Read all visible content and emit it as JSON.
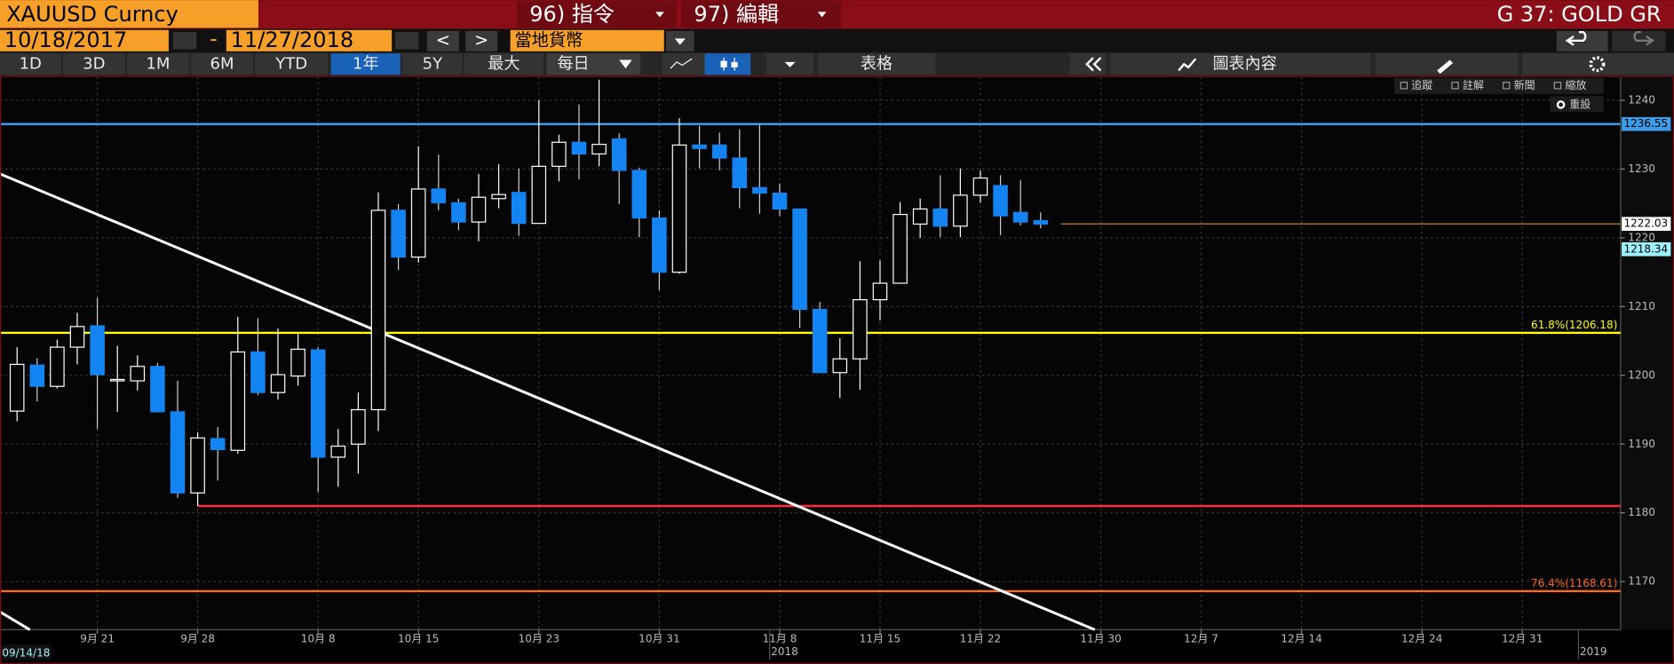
{
  "header": {
    "security": "XAUUSD Curncy",
    "menu": [
      "96) 指令",
      "97) 編輯"
    ],
    "page_title": "G 37: GOLD GR"
  },
  "toolbar": {
    "start_date": "10/18/2017",
    "date_separator": "-",
    "end_date": "11/27/2018",
    "nav": [
      "<",
      ">"
    ],
    "currency": "當地貨幣"
  },
  "tabs": {
    "periods": [
      "1D",
      "3D",
      "1M",
      "6M",
      "YTD",
      "1年",
      "5Y",
      "最大"
    ],
    "selected_period": 5,
    "frequency": "每日",
    "table": "表格",
    "chart_content": "圖表內容"
  },
  "chart_tools": {
    "items": [
      "追蹤",
      "註解",
      "新聞",
      "縮放"
    ],
    "reset": "重設"
  },
  "date_stamp": "09/14/18",
  "chart_data": {
    "type": "candlestick",
    "open": [
      1194.8,
      1201.5,
      1198.4,
      1204.1,
      1207.2,
      1199.2,
      1199.2,
      1201.3,
      1194.7,
      1182.9,
      1190.8,
      1189.1,
      1203.4,
      1197.5,
      1199.9,
      1203.7,
      1188.1,
      1190.0,
      1195.0,
      1224.0,
      1217.2,
      1227.1,
      1225.1,
      1222.3,
      1225.7,
      1226.6,
      1222.1,
      1230.4,
      1233.9,
      1232.2,
      1234.4,
      1229.8,
      1222.9,
      1215.0,
      1233.5,
      1233.5,
      1231.6,
      1227.3,
      1226.5,
      1224.2,
      1209.6,
      1200.4,
      1202.4,
      1211.0,
      1213.4,
      1222.0,
      1224.2,
      1221.7,
      1226.2,
      1227.6,
      1223.7,
      1222.5
    ],
    "high": [
      1204.1,
      1202.5,
      1205.2,
      1209.1,
      1211.3,
      1204.3,
      1202.9,
      1201.8,
      1199.2,
      1191.7,
      1192.5,
      1208.5,
      1208.3,
      1206.8,
      1206.0,
      1204.1,
      1192.2,
      1197.5,
      1226.6,
      1224.9,
      1233.3,
      1232.1,
      1225.7,
      1229.3,
      1230.7,
      1230.1,
      1240.0,
      1235.0,
      1239.4,
      1243.0,
      1235.2,
      1230.2,
      1224.0,
      1237.4,
      1236.3,
      1235.3,
      1235.8,
      1236.4,
      1227.9,
      1224.2,
      1210.7,
      1205.4,
      1216.6,
      1216.7,
      1225.2,
      1225.7,
      1229.1,
      1230.1,
      1229.8,
      1229.1,
      1228.4,
      1223.7
    ],
    "low": [
      1193.3,
      1196.2,
      1198.1,
      1201.6,
      1192.2,
      1194.7,
      1197.8,
      1194.6,
      1182.2,
      1181.0,
      1184.7,
      1188.6,
      1197.1,
      1196.5,
      1198.5,
      1183.0,
      1183.8,
      1185.7,
      1191.9,
      1215.3,
      1216.4,
      1224.0,
      1221.1,
      1219.5,
      1224.3,
      1220.3,
      1222.1,
      1228.2,
      1228.5,
      1230.4,
      1224.9,
      1220.1,
      1212.4,
      1214.8,
      1230.1,
      1229.8,
      1224.3,
      1223.5,
      1223.2,
      1206.9,
      1200.4,
      1196.7,
      1197.9,
      1208.0,
      1213.4,
      1220.0,
      1220.1,
      1220.1,
      1225.1,
      1220.4,
      1221.8,
      1221.4
    ],
    "close": [
      1201.6,
      1198.4,
      1204.1,
      1207.1,
      1200.1,
      1199.4,
      1201.3,
      1194.7,
      1182.9,
      1190.9,
      1189.2,
      1203.4,
      1197.5,
      1200.1,
      1203.8,
      1188.1,
      1189.7,
      1195.0,
      1224.0,
      1217.2,
      1227.1,
      1225.1,
      1222.3,
      1225.9,
      1226.3,
      1222.1,
      1230.4,
      1233.9,
      1232.2,
      1233.6,
      1229.8,
      1222.9,
      1215.0,
      1233.5,
      1233.0,
      1231.6,
      1227.3,
      1226.5,
      1224.2,
      1209.6,
      1200.4,
      1202.4,
      1211.0,
      1213.4,
      1223.4,
      1224.2,
      1221.7,
      1226.2,
      1228.7,
      1223.2,
      1222.3,
      1222.0
    ],
    "up_color": "#ffffff",
    "down_color": "#1484f2",
    "xlim": [
      -0.85,
      79.9
    ],
    "xticks": [
      {
        "value": 4,
        "label": "9月 21"
      },
      {
        "value": 9,
        "label": "9月 28"
      },
      {
        "value": 15,
        "label": "10月 8"
      },
      {
        "value": 20,
        "label": "10月 15"
      },
      {
        "value": 26,
        "label": "10月 23"
      },
      {
        "value": 32,
        "label": "10月 31"
      },
      {
        "value": 38,
        "label": "11月 8"
      },
      {
        "value": 43,
        "label": "11月 15"
      },
      {
        "value": 48,
        "label": "11月 22"
      },
      {
        "value": 54,
        "label": "11月 30"
      },
      {
        "value": 59,
        "label": "12月 7"
      },
      {
        "value": 64,
        "label": "12月 14"
      },
      {
        "value": 70,
        "label": "12月 24"
      },
      {
        "value": 75,
        "label": "12月 31"
      }
    ],
    "year_labels": [
      {
        "value": 37.5,
        "label": "2018"
      },
      {
        "value": 77.8,
        "label": "2019"
      }
    ],
    "ylim": [
      1163,
      1243.4
    ],
    "yticks": [
      1170,
      1180,
      1190,
      1200,
      1210,
      1220,
      1230,
      1240
    ],
    "grid": true,
    "levels": [
      {
        "value": 1236.55,
        "color": "#3d9be9"
      },
      {
        "value": 1206.18,
        "color": "#ffff00",
        "label": "61.8%(1206.18)"
      },
      {
        "value": 1181.0,
        "color": "#ff2d3c",
        "start": 9
      },
      {
        "value": 1168.61,
        "color": "#ff6a1a",
        "label": "76.4%(1168.61)"
      }
    ],
    "last_price": {
      "value": 1222.03,
      "color": "#e08a1c",
      "start": 52
    },
    "bid_price": {
      "value": 1218.34,
      "color": "#9ff3ff"
    },
    "trendlines": [
      {
        "color": "#ffffff",
        "points": [
          [
            -0.85,
            1229.3
          ],
          [
            53.7,
            1163.0
          ]
        ]
      },
      {
        "color": "#ffffff",
        "points": [
          [
            -0.85,
            1165.6
          ],
          [
            0.64,
            1163.0
          ]
        ]
      }
    ]
  }
}
